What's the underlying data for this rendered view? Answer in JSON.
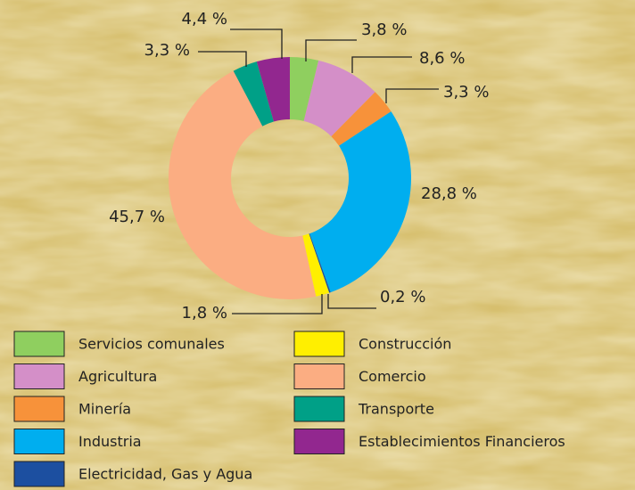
{
  "chart_data": {
    "type": "donut",
    "series": [
      {
        "name": "Servicios comunales",
        "color": "#8fcf5f",
        "value": 3.8,
        "value_label": "3,8 %"
      },
      {
        "name": "Agricultura",
        "color": "#d48fc8",
        "value": 8.6,
        "value_label": "8,6 %"
      },
      {
        "name": "Minería",
        "color": "#f7923a",
        "value": 3.3,
        "value_label": "3,3 %"
      },
      {
        "name": "Industria",
        "color": "#00aeef",
        "value": 28.8,
        "value_label": "28,8 %"
      },
      {
        "name": "Electricidad, Gas y Agua",
        "color": "#1c4fa0",
        "value": 0.2,
        "value_label": "0,2 %"
      },
      {
        "name": "Construcción",
        "color": "#ffef00",
        "value": 1.8,
        "value_label": "1,8 %"
      },
      {
        "name": "Comercio",
        "color": "#fbad82",
        "value": 45.7,
        "value_label": "45,7 %"
      },
      {
        "name": "Transporte",
        "color": "#00a087",
        "value": 3.3,
        "value_label": "3,3 %"
      },
      {
        "name": "Establecimientos Financieros",
        "color": "#92278f",
        "value": 4.4,
        "value_label": "4,4 %"
      }
    ]
  }
}
